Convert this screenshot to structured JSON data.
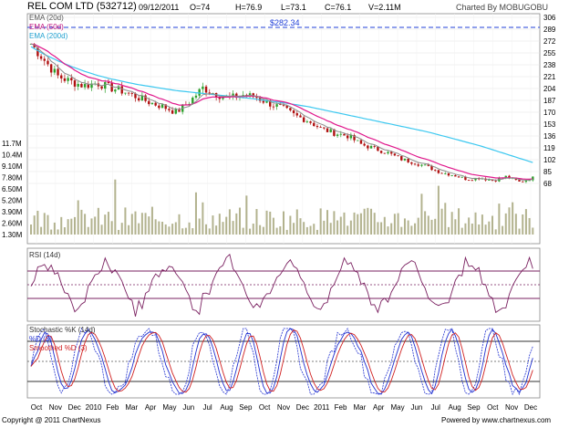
{
  "header": {
    "title": "REL COM LTD (532712)",
    "date": "09/12/2011",
    "open": "O=74",
    "high": "H=76.9",
    "low": "L=73.1",
    "close": "C=76.1",
    "volume": "V=2.11M",
    "charted_by": "Charted By MOBUGOBU"
  },
  "footer": {
    "copyright": "Copyright @ 2011 ChartNexus",
    "powered_by": "Powered by www.chartnexus.com"
  },
  "chart_data": [
    {
      "type": "line",
      "panel": "price",
      "legend": [
        "EMA (20d)",
        "EMA (50d)",
        "EMA (200d)"
      ],
      "annotation": "$282.34",
      "price_ticks": [
        306,
        289,
        272,
        255,
        238,
        221,
        204,
        187,
        170,
        153,
        136,
        119,
        102,
        85,
        68
      ],
      "volume_ticks": [
        "11.7M",
        "10.4M",
        "9.10M",
        "7.80M",
        "6.50M",
        "5.20M",
        "3.90M",
        "2.60M",
        "1.30M"
      ],
      "x_labels": [
        "Oct",
        "Nov",
        "Dec",
        "2010",
        "Feb",
        "Mar",
        "Apr",
        "May",
        "Jun",
        "Jul",
        "Aug",
        "Sep",
        "Oct",
        "Nov",
        "Dec",
        "2011",
        "Feb",
        "Mar",
        "Apr",
        "May",
        "Jun",
        "Jul",
        "Aug",
        "Sep",
        "Oct",
        "Nov",
        "Dec"
      ],
      "approx_close": [
        268,
        245,
        222,
        214,
        208,
        212,
        205,
        200,
        192,
        184,
        178,
        170,
        185,
        205,
        196,
        190,
        195,
        192,
        183,
        176,
        165,
        158,
        146,
        140,
        136,
        124,
        118,
        112,
        103,
        98,
        92,
        84,
        80,
        74,
        76,
        72,
        78,
        70,
        76
      ],
      "ema200": [
        264,
        253,
        244,
        236,
        229,
        223,
        218,
        214,
        210,
        207,
        204,
        201,
        199,
        197,
        195,
        193,
        191,
        189,
        186,
        184,
        181,
        178,
        174,
        170,
        166,
        162,
        158,
        154,
        150,
        146,
        142,
        137,
        132,
        127,
        122,
        116,
        110,
        104,
        98
      ],
      "colors": {
        "ema20": "#8c8c8c",
        "ema50": "#e0188c",
        "ema200": "#3cc8f0",
        "up": "#2ca02c",
        "down": "#b01010",
        "volume": "#9a9a6a"
      }
    },
    {
      "type": "line",
      "panel": "rsi",
      "title": "RSI (14d)"
    },
    {
      "type": "line",
      "panel": "stochastic",
      "title": "Stochastic %K (14d)",
      "legend": [
        "%D (3)",
        "Smoothed %D (3)"
      ],
      "colors": {
        "k": "#202020",
        "d": "#2030d0",
        "smoothed": "#d02020"
      }
    }
  ]
}
